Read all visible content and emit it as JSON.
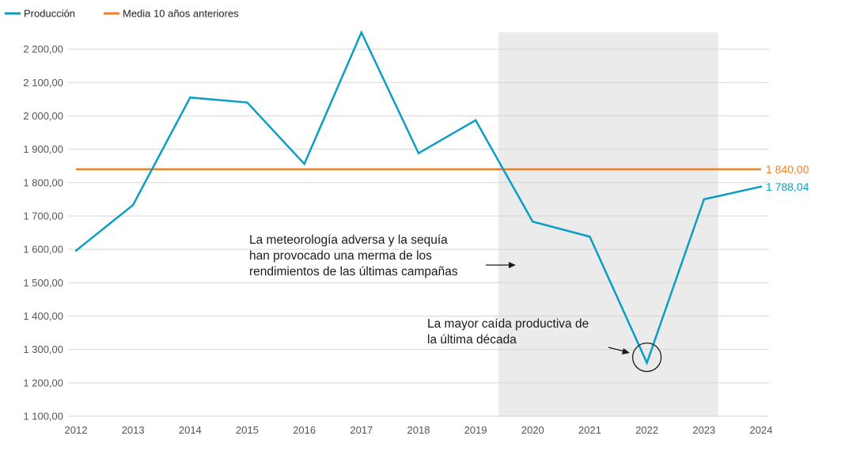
{
  "chart_data": {
    "type": "line",
    "title": "",
    "xlabel": "",
    "ylabel": "",
    "x": [
      "2012",
      "2013",
      "2014",
      "2015",
      "2016",
      "2017",
      "2018",
      "2019",
      "2020",
      "2021",
      "2022",
      "2023",
      "2024"
    ],
    "ylim": [
      1100,
      2250
    ],
    "y_ticks": [
      1100,
      1200,
      1300,
      1400,
      1500,
      1600,
      1700,
      1800,
      1900,
      2000,
      2100,
      2200
    ],
    "y_tick_labels": [
      "1 100,00",
      "1 200,00",
      "1 300,00",
      "1 400,00",
      "1 500,00",
      "1 600,00",
      "1 700,00",
      "1 800,00",
      "1 900,00",
      "2 000,00",
      "2 100,00",
      "2 200,00"
    ],
    "grid": true,
    "legend_position": "top-left",
    "series": [
      {
        "name": "Producción",
        "color": "#0a9ec4",
        "values": [
          1596,
          1733,
          2055,
          2040,
          1856,
          2250,
          1888,
          1987,
          1683,
          1638,
          1260,
          1750,
          1788.04
        ],
        "end_label": "1 788,04"
      },
      {
        "name": "Media 10 años anteriores",
        "color": "#f07f26",
        "values": [
          1840,
          1840,
          1840,
          1840,
          1840,
          1840,
          1840,
          1840,
          1840,
          1840,
          1840,
          1840,
          1840
        ],
        "end_label": "1 840,00"
      }
    ],
    "shaded_region": {
      "x_from": 2019.4,
      "x_to": 2023.25,
      "color": "#ebebeb"
    },
    "annotations": [
      {
        "lines": [
          "La meteorología adversa y la sequía",
          "han provocado una merma de los",
          "rendimientos de las últimas campañas"
        ]
      },
      {
        "lines": [
          "La mayor caída productiva de",
          "la última década"
        ],
        "highlight_year": "2022"
      }
    ]
  }
}
